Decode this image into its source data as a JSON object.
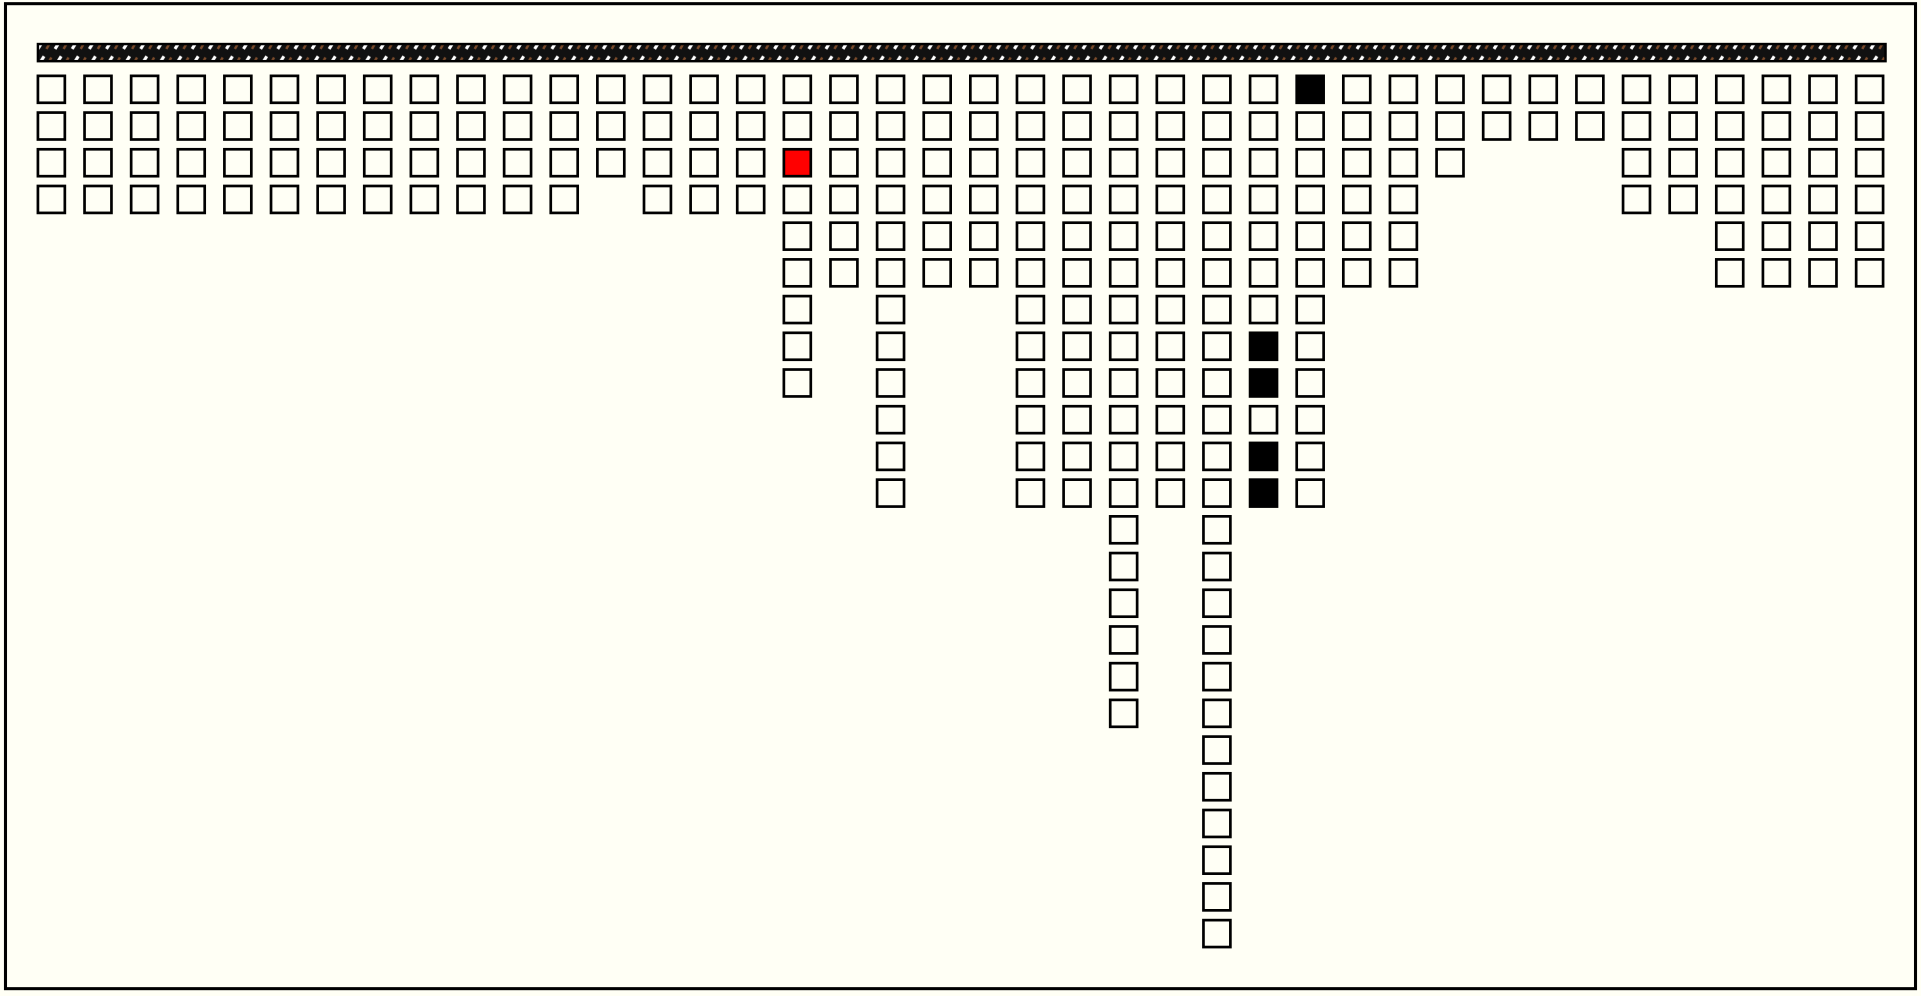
{
  "board": {
    "columns": [
      {
        "cells": 4
      },
      {
        "cells": 4
      },
      {
        "cells": 4
      },
      {
        "cells": 4
      },
      {
        "cells": 4
      },
      {
        "cells": 4
      },
      {
        "cells": 4
      },
      {
        "cells": 4
      },
      {
        "cells": 4
      },
      {
        "cells": 4
      },
      {
        "cells": 4
      },
      {
        "cells": 4
      },
      {
        "cells": 3
      },
      {
        "cells": 4
      },
      {
        "cells": 4
      },
      {
        "cells": 4
      },
      {
        "cells": 9,
        "red": [
          2
        ]
      },
      {
        "cells": 6
      },
      {
        "cells": 12
      },
      {
        "cells": 6
      },
      {
        "cells": 6
      },
      {
        "cells": 12
      },
      {
        "cells": 12
      },
      {
        "cells": 18
      },
      {
        "cells": 12
      },
      {
        "cells": 24
      },
      {
        "cells": 12,
        "black": [
          7,
          8,
          10,
          11
        ]
      },
      {
        "cells": 12,
        "black": [
          0
        ]
      },
      {
        "cells": 6
      },
      {
        "cells": 6
      },
      {
        "cells": 3
      },
      {
        "cells": 2
      },
      {
        "cells": 2
      },
      {
        "cells": 2
      },
      {
        "cells": 4
      },
      {
        "cells": 4
      },
      {
        "cells": 6
      },
      {
        "cells": 6
      },
      {
        "cells": 6
      },
      {
        "cells": 6
      }
    ],
    "empty_color": "#fffff5",
    "black_color": "#000000",
    "red_color": "#ff0000"
  }
}
